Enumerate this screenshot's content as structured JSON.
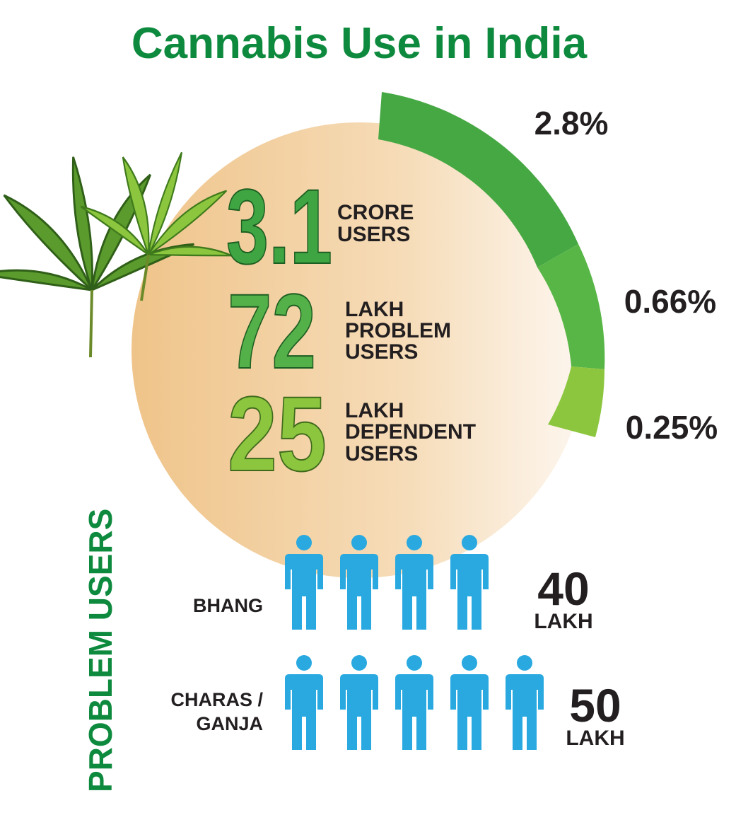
{
  "title": "Cannabis Use in India",
  "ring": {
    "segments": [
      "2.8%",
      "0.66%",
      "0.25%"
    ]
  },
  "stats": [
    {
      "number": 3.1,
      "label": [
        "CRORE",
        "USERS"
      ]
    },
    {
      "number": 72,
      "label": [
        "LAKH",
        "PROBLEM",
        "USERS"
      ]
    },
    {
      "number": 25,
      "label": [
        "LAKH",
        "DEPENDENT",
        "USERS"
      ]
    }
  ],
  "side_label": "PROBLEM USERS",
  "problem_users": [
    {
      "label": [
        "BHANG"
      ],
      "number": 40,
      "unit": "LAKH"
    },
    {
      "label": [
        "CHARAS /",
        "GANJA"
      ],
      "number": 50,
      "unit": "LAKH"
    }
  ]
}
